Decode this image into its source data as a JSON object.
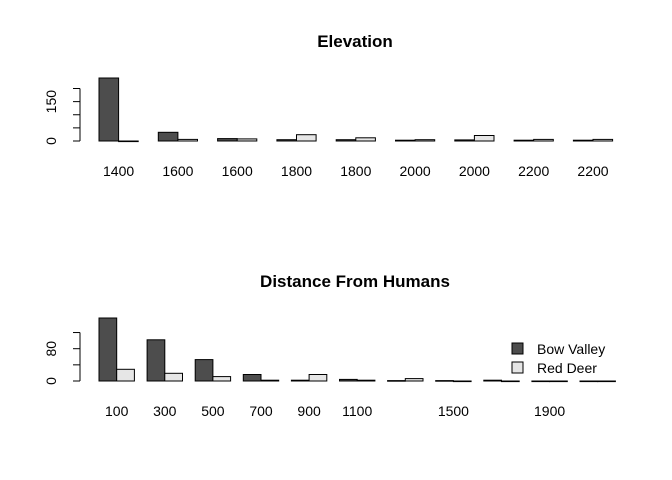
{
  "colors": {
    "bow_valley": "#4d4d4d",
    "red_deer": "#e6e6e6",
    "axis": "#000000"
  },
  "chart_data": [
    {
      "type": "bar",
      "title": "Elevation",
      "categories": [
        "1400",
        "1600",
        "1600",
        "1800",
        "1800",
        "2000",
        "2000",
        "2200",
        "2200"
      ],
      "series": [
        {
          "name": "Bow Valley",
          "values": [
            240,
            33,
            9,
            5,
            5,
            3,
            4,
            3,
            3
          ]
        },
        {
          "name": "Red Deer",
          "values": [
            0,
            6,
            8,
            24,
            12,
            5,
            21,
            6,
            6
          ]
        }
      ],
      "ylim": [
        0,
        240
      ],
      "yticks": [
        0,
        50,
        100,
        150,
        200
      ],
      "ytick_labels": [
        "0",
        "",
        "",
        "150",
        ""
      ],
      "legend": "none"
    },
    {
      "type": "bar",
      "title": "Distance From Humans",
      "categories": [
        "100",
        "300",
        "500",
        "700",
        "900",
        "1100",
        "",
        "1500",
        "",
        "1900",
        ""
      ],
      "series": [
        {
          "name": "Bow Valley",
          "values": [
            156,
            102,
            53,
            16,
            2,
            4,
            1,
            1,
            2,
            0,
            0
          ]
        },
        {
          "name": "Red Deer",
          "values": [
            29,
            19,
            11,
            2,
            16,
            2,
            6,
            0,
            0,
            0,
            0
          ]
        }
      ],
      "ylim": [
        0,
        156
      ],
      "yticks": [
        0,
        40,
        80,
        120
      ],
      "ytick_labels": [
        "0",
        "",
        "80",
        ""
      ],
      "legend": "right",
      "legend_labels": [
        "Bow Valley",
        "Red Deer"
      ]
    }
  ]
}
